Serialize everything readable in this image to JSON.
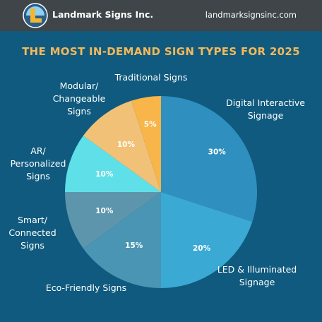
{
  "header": {
    "brand": "Landmark Signs Inc.",
    "website": "landmarksignsinc.com",
    "logo_icon": "landmark-l-logo"
  },
  "chart_data": {
    "type": "pie",
    "title": "THE MOST IN-DEMAND SIGN TYPES FOR 2025",
    "slices": [
      {
        "label": "Digital Interactive Signage",
        "value": 30,
        "value_label": "30%",
        "color": "#2f8fbf"
      },
      {
        "label": "LED & Illuminated Signage",
        "value": 20,
        "value_label": "20%",
        "color": "#3aa9d3"
      },
      {
        "label": "Eco-Friendly Signs",
        "value": 15,
        "value_label": "15%",
        "color": "#4a94b4"
      },
      {
        "label": "Smart/ Connected Signs",
        "value": 10,
        "value_label": "10%",
        "color": "#5d96ac"
      },
      {
        "label": "AR/ Personalized Signs",
        "value": 10,
        "value_label": "10%",
        "color": "#5fe0e8"
      },
      {
        "label": "Modular/ Changeable Signs",
        "value": 10,
        "value_label": "10%",
        "color": "#f1c177"
      },
      {
        "label": "Traditional Signs",
        "value": 5,
        "value_label": "5%",
        "color": "#f7b54a"
      }
    ]
  }
}
